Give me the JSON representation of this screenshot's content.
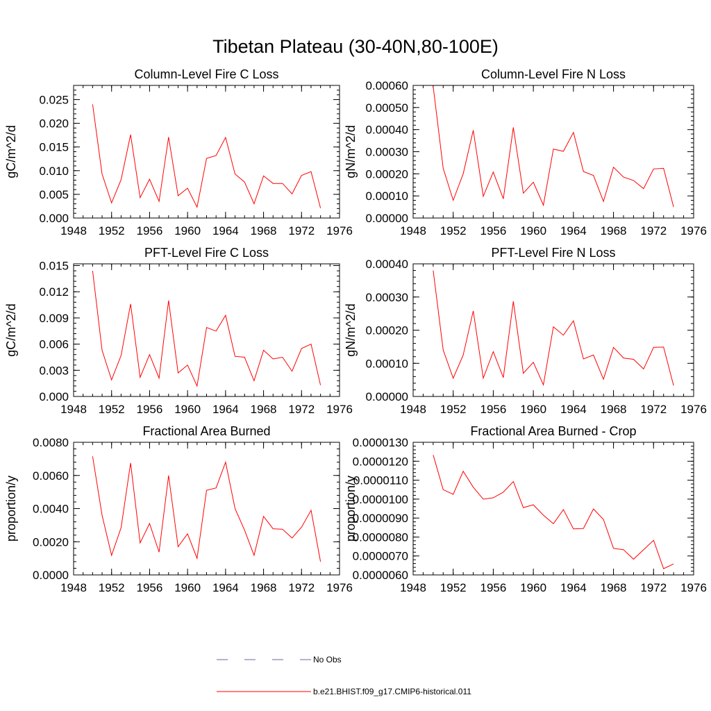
{
  "figure": {
    "title": "Tibetan Plateau (30-40N,80-100E)"
  },
  "chart_data": [
    {
      "type": "line",
      "title": "Column-Level Fire C Loss",
      "ylabel": "gC/m^2/d",
      "xlabel": "",
      "xlim": [
        1948,
        1976
      ],
      "ylim": [
        0,
        0.028
      ],
      "xticks": [
        "1948",
        "1952",
        "1956",
        "1960",
        "1964",
        "1968",
        "1972",
        "1976"
      ],
      "yticks": [
        "0.000",
        "0.005",
        "0.010",
        "0.015",
        "0.020",
        "0.025"
      ],
      "ytick_values": [
        0,
        0.005,
        0.01,
        0.015,
        0.02,
        0.025
      ],
      "x": [
        1950,
        1951,
        1952,
        1953,
        1954,
        1955,
        1956,
        1957,
        1958,
        1959,
        1960,
        1961,
        1962,
        1963,
        1964,
        1965,
        1966,
        1967,
        1968,
        1969,
        1970,
        1971,
        1972,
        1973,
        1974
      ],
      "series": [
        {
          "color": "#ff0000",
          "values": [
            0.024,
            0.0093,
            0.0032,
            0.0081,
            0.0176,
            0.0043,
            0.0082,
            0.0035,
            0.0171,
            0.0047,
            0.0063,
            0.0023,
            0.0126,
            0.0132,
            0.017,
            0.0093,
            0.0076,
            0.003,
            0.0089,
            0.0073,
            0.0073,
            0.0051,
            0.009,
            0.0098,
            0.0021
          ]
        }
      ]
    },
    {
      "type": "line",
      "title": "Column-Level Fire N Loss",
      "ylabel": "gN/m^2/d",
      "xlabel": "",
      "xlim": [
        1948,
        1976
      ],
      "ylim": [
        0,
        0.0006
      ],
      "xticks": [
        "1948",
        "1952",
        "1956",
        "1960",
        "1964",
        "1968",
        "1972",
        "1976"
      ],
      "yticks": [
        "0.00000",
        "0.00010",
        "0.00020",
        "0.00030",
        "0.00040",
        "0.00050",
        "0.00060"
      ],
      "ytick_values": [
        0,
        0.0001,
        0.0002,
        0.0003,
        0.0004,
        0.0005,
        0.0006
      ],
      "x": [
        1950,
        1951,
        1952,
        1953,
        1954,
        1955,
        1956,
        1957,
        1958,
        1959,
        1960,
        1961,
        1962,
        1963,
        1964,
        1965,
        1966,
        1967,
        1968,
        1969,
        1970,
        1971,
        1972,
        1973,
        1974
      ],
      "series": [
        {
          "color": "#ff0000",
          "values": [
            0.000595,
            0.000225,
            8e-05,
            0.0002,
            0.000397,
            9.8e-05,
            0.000208,
            8.7e-05,
            0.00041,
            0.000112,
            0.000162,
            5.8e-05,
            0.000312,
            0.000302,
            0.000387,
            0.00021,
            0.000193,
            7.5e-05,
            0.00023,
            0.000185,
            0.00017,
            0.000133,
            0.000222,
            0.000225,
            5e-05
          ]
        }
      ]
    },
    {
      "type": "line",
      "title": "PFT-Level Fire C Loss",
      "ylabel": "gC/m^2/d",
      "xlabel": "",
      "xlim": [
        1948,
        1976
      ],
      "ylim": [
        0,
        0.0152
      ],
      "xticks": [
        "1948",
        "1952",
        "1956",
        "1960",
        "1964",
        "1968",
        "1972",
        "1976"
      ],
      "yticks": [
        "0.000",
        "0.003",
        "0.006",
        "0.009",
        "0.012",
        "0.015"
      ],
      "ytick_values": [
        0,
        0.003,
        0.006,
        0.009,
        0.012,
        0.015
      ],
      "x": [
        1950,
        1951,
        1952,
        1953,
        1954,
        1955,
        1956,
        1957,
        1958,
        1959,
        1960,
        1961,
        1962,
        1963,
        1964,
        1965,
        1966,
        1967,
        1968,
        1969,
        1970,
        1971,
        1972,
        1973,
        1974
      ],
      "series": [
        {
          "color": "#ff0000",
          "values": [
            0.0144,
            0.0053,
            0.0019,
            0.0047,
            0.0106,
            0.0022,
            0.0048,
            0.0021,
            0.011,
            0.0027,
            0.0036,
            0.0012,
            0.0079,
            0.0075,
            0.0093,
            0.0046,
            0.0045,
            0.0018,
            0.0053,
            0.0043,
            0.0045,
            0.0029,
            0.0055,
            0.006,
            0.0013
          ]
        }
      ]
    },
    {
      "type": "line",
      "title": "PFT-Level Fire N Loss",
      "ylabel": "gN/m^2/d",
      "xlabel": "",
      "xlim": [
        1948,
        1976
      ],
      "ylim": [
        0,
        0.0004
      ],
      "xticks": [
        "1948",
        "1952",
        "1956",
        "1960",
        "1964",
        "1968",
        "1972",
        "1976"
      ],
      "yticks": [
        "0.00000",
        "0.00010",
        "0.00020",
        "0.00030",
        "0.00040"
      ],
      "ytick_values": [
        0,
        0.0001,
        0.0002,
        0.0003,
        0.0004
      ],
      "x": [
        1950,
        1951,
        1952,
        1953,
        1954,
        1955,
        1956,
        1957,
        1958,
        1959,
        1960,
        1961,
        1962,
        1963,
        1964,
        1965,
        1966,
        1967,
        1968,
        1969,
        1970,
        1971,
        1972,
        1973,
        1974
      ],
      "series": [
        {
          "color": "#ff0000",
          "values": [
            0.00038,
            0.00014,
            5.5e-05,
            0.000125,
            0.000258,
            5.5e-05,
            0.000135,
            5.7e-05,
            0.000287,
            7e-05,
            0.000103,
            3.5e-05,
            0.00021,
            0.000185,
            0.000228,
            0.000113,
            0.000125,
            5.2e-05,
            0.000148,
            0.000116,
            0.000112,
            8.3e-05,
            0.000148,
            0.000149,
            3.3e-05
          ]
        }
      ]
    },
    {
      "type": "line",
      "title": "Fractional Area Burned",
      "ylabel": "proportion/y",
      "xlabel": "",
      "xlim": [
        1948,
        1976
      ],
      "ylim": [
        0,
        0.008
      ],
      "xticks": [
        "1948",
        "1952",
        "1956",
        "1960",
        "1964",
        "1968",
        "1972",
        "1976"
      ],
      "yticks": [
        "0.0000",
        "0.0020",
        "0.0040",
        "0.0060",
        "0.0080"
      ],
      "ytick_values": [
        0,
        0.002,
        0.004,
        0.006,
        0.008
      ],
      "x": [
        1950,
        1951,
        1952,
        1953,
        1954,
        1955,
        1956,
        1957,
        1958,
        1959,
        1960,
        1961,
        1962,
        1963,
        1964,
        1965,
        1966,
        1967,
        1968,
        1969,
        1970,
        1971,
        1972,
        1973,
        1974
      ],
      "series": [
        {
          "color": "#ff0000",
          "values": [
            0.00715,
            0.0036,
            0.00118,
            0.00285,
            0.00675,
            0.00193,
            0.0031,
            0.00138,
            0.006,
            0.0017,
            0.00248,
            0.001,
            0.0051,
            0.00525,
            0.0068,
            0.004,
            0.0027,
            0.00118,
            0.00353,
            0.00278,
            0.00275,
            0.00223,
            0.00288,
            0.0039,
            0.0008
          ]
        }
      ]
    },
    {
      "type": "line",
      "title": "Fractional Area Burned - Crop",
      "ylabel": "proportion/y",
      "xlabel": "",
      "xlim": [
        1948,
        1976
      ],
      "ylim": [
        6e-06,
        1.3e-05
      ],
      "xticks": [
        "1948",
        "1952",
        "1956",
        "1960",
        "1964",
        "1968",
        "1972",
        "1976"
      ],
      "yticks": [
        "0.0000060",
        "0.0000070",
        "0.0000080",
        "0.0000090",
        "0.0000100",
        "0.0000110",
        "0.0000120",
        "0.0000130"
      ],
      "ytick_values": [
        6e-06,
        7e-06,
        8e-06,
        9e-06,
        1e-05,
        1.1e-05,
        1.2e-05,
        1.3e-05
      ],
      "x": [
        1950,
        1951,
        1952,
        1953,
        1954,
        1955,
        1956,
        1957,
        1958,
        1959,
        1960,
        1961,
        1962,
        1963,
        1964,
        1965,
        1966,
        1967,
        1968,
        1969,
        1970,
        1971,
        1972,
        1973,
        1974
      ],
      "series": [
        {
          "color": "#ff0000",
          "values": [
            1.233e-05,
            1.05e-05,
            1.025e-05,
            1.147e-05,
            1.063e-05,
            1e-05,
            1.007e-05,
            1.037e-05,
            1.093e-05,
            9.55e-06,
            9.7e-06,
            9.15e-06,
            8.7e-06,
            9.45e-06,
            8.43e-06,
            8.45e-06,
            9.48e-06,
            8.93e-06,
            7.4e-06,
            7.33e-06,
            6.83e-06,
            7.33e-06,
            7.83e-06,
            6.33e-06,
            6.58e-06
          ]
        }
      ]
    }
  ],
  "legend": {
    "placement": "bottom-center",
    "items": [
      {
        "label": "No Obs",
        "color": "#6666aa",
        "style": "dashed"
      },
      {
        "label": "b.e21.BHIST.f09_g17.CMIP6-historical.011",
        "color": "#ff0000",
        "style": "solid"
      }
    ]
  }
}
